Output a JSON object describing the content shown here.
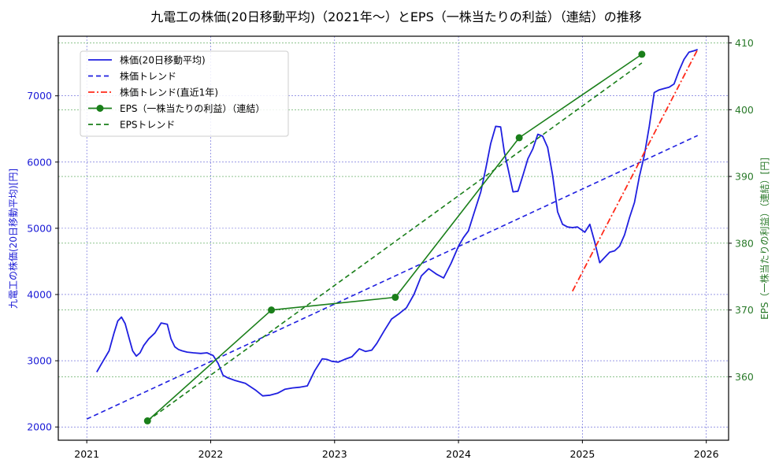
{
  "chart_data": {
    "type": "line",
    "title": "九電工の株価(20日移動平均)（2021年～）とEPS（一株当たりの利益）（連結）の推移",
    "xlabel": "",
    "ylabel_left": "九電工の株価(20日移動平均)[円]",
    "ylabel_right": "EPS（一株当たりの利益）（連結）[円]",
    "xlim": [
      2020.77,
      2026.18
    ],
    "ylim_left": [
      1800,
      7900
    ],
    "ylim_right": [
      350.5,
      411
    ],
    "x_ticks": [
      2021,
      2022,
      2023,
      2024,
      2025,
      2026
    ],
    "x_tick_labels": [
      "2021",
      "2022",
      "2023",
      "2024",
      "2025",
      "2026"
    ],
    "y_ticks_left": [
      2000,
      3000,
      4000,
      5000,
      6000,
      7000
    ],
    "y_ticks_right": [
      360,
      370,
      380,
      390,
      400,
      410
    ],
    "grid": true,
    "legend_position": "upper left",
    "colors": {
      "price": "#1f1fe0",
      "price_trend": "#1f1fe0",
      "price_trend_recent": "#ff2a1a",
      "eps": "#1a7f1a",
      "eps_trend": "#1a7f1a",
      "grid_left": "#5b5bd6",
      "grid_right": "#4aa04a"
    },
    "legend": [
      {
        "label": "株価(20日移動平均)",
        "style": "solid",
        "color": "#1f1fe0"
      },
      {
        "label": "株価トレンド",
        "style": "dashed",
        "color": "#1f1fe0"
      },
      {
        "label": "株価トレンド(直近1年)",
        "style": "dashdot",
        "color": "#ff2a1a"
      },
      {
        "label": "EPS（一株当たりの利益）（連結）",
        "style": "solid-marker",
        "color": "#1a7f1a"
      },
      {
        "label": "EPSトレンド",
        "style": "dashed",
        "color": "#1a7f1a"
      }
    ],
    "series": [
      {
        "name": "株価(20日移動平均)",
        "axis": "left",
        "x": [
          2021.08,
          2021.13,
          2021.18,
          2021.22,
          2021.25,
          2021.28,
          2021.31,
          2021.34,
          2021.37,
          2021.4,
          2021.43,
          2021.46,
          2021.5,
          2021.55,
          2021.6,
          2021.65,
          2021.68,
          2021.71,
          2021.74,
          2021.77,
          2021.81,
          2021.86,
          2021.92,
          2021.97,
          2022.02,
          2022.06,
          2022.1,
          2022.14,
          2022.2,
          2022.28,
          2022.36,
          2022.42,
          2022.48,
          2022.54,
          2022.6,
          2022.66,
          2022.72,
          2022.78,
          2022.84,
          2022.9,
          2022.94,
          2022.98,
          2023.03,
          2023.08,
          2023.14,
          2023.2,
          2023.25,
          2023.3,
          2023.34,
          2023.4,
          2023.46,
          2023.52,
          2023.58,
          2023.64,
          2023.7,
          2023.76,
          2023.82,
          2023.88,
          2023.94,
          2024.0,
          2024.04,
          2024.08,
          2024.12,
          2024.18,
          2024.22,
          2024.26,
          2024.3,
          2024.34,
          2024.37,
          2024.4,
          2024.44,
          2024.48,
          2024.52,
          2024.56,
          2024.6,
          2024.64,
          2024.68,
          2024.72,
          2024.76,
          2024.8,
          2024.84,
          2024.88,
          2024.92,
          2024.96,
          2025.02,
          2025.06,
          2025.1,
          2025.14,
          2025.18,
          2025.22,
          2025.26,
          2025.3,
          2025.34,
          2025.38,
          2025.42,
          2025.46,
          2025.5,
          2025.54,
          2025.58,
          2025.62,
          2025.66,
          2025.7,
          2025.74,
          2025.78,
          2025.82,
          2025.86,
          2025.9,
          2025.93
        ],
        "y": [
          2830,
          2990,
          3150,
          3420,
          3600,
          3660,
          3560,
          3350,
          3150,
          3070,
          3120,
          3230,
          3330,
          3420,
          3570,
          3550,
          3330,
          3210,
          3170,
          3150,
          3130,
          3120,
          3110,
          3120,
          3080,
          2960,
          2780,
          2740,
          2700,
          2660,
          2560,
          2470,
          2480,
          2510,
          2570,
          2590,
          2600,
          2620,
          2850,
          3030,
          3020,
          2990,
          2980,
          3020,
          3060,
          3180,
          3140,
          3160,
          3260,
          3450,
          3630,
          3710,
          3800,
          4000,
          4280,
          4390,
          4310,
          4250,
          4470,
          4730,
          4860,
          4960,
          5200,
          5550,
          5900,
          6280,
          6540,
          6530,
          6150,
          5900,
          5550,
          5560,
          5800,
          6050,
          6200,
          6420,
          6390,
          6220,
          5800,
          5250,
          5060,
          5020,
          5010,
          5020,
          4940,
          5060,
          4790,
          4480,
          4560,
          4640,
          4660,
          4730,
          4900,
          5160,
          5390,
          5780,
          6100,
          6540,
          7050,
          7090,
          7110,
          7130,
          7180,
          7380,
          7550,
          7660,
          7680,
          7700
        ]
      },
      {
        "name": "株価トレンド",
        "axis": "left",
        "x": [
          2021.0,
          2025.93
        ],
        "y": [
          2120,
          6400
        ]
      },
      {
        "name": "株価トレンド(直近1年)",
        "axis": "left",
        "x": [
          2024.92,
          2025.93
        ],
        "y": [
          4050,
          7700
        ]
      },
      {
        "name": "EPS（一株当たりの利益）（連結）",
        "axis": "right",
        "x": [
          2021.49,
          2022.49,
          2023.49,
          2024.49,
          2025.48
        ],
        "y": [
          353.4,
          370.0,
          371.9,
          395.8,
          408.3
        ]
      },
      {
        "name": "EPSトレンド",
        "axis": "right",
        "x": [
          2021.49,
          2025.48
        ],
        "y": [
          353.4,
          407.0
        ]
      }
    ]
  }
}
